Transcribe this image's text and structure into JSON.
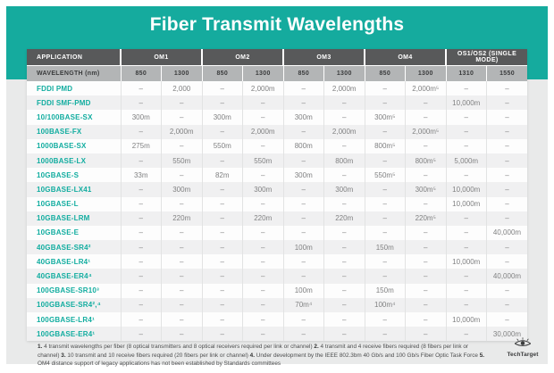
{
  "chart_data": {
    "type": "table",
    "title": "Fiber Transmit Wavelengths",
    "group_headers": [
      "APPLICATION",
      "OM1",
      "OM2",
      "OM3",
      "OM4",
      "OS1/OS2 (SINGLE MODE)"
    ],
    "wavelength_label": "WAVELENGTH (nm)",
    "columns": [
      "850",
      "1300",
      "850",
      "1300",
      "850",
      "1300",
      "850",
      "1300",
      "1310",
      "1550"
    ],
    "rows": [
      [
        "FDDI PMD",
        "–",
        "2,000",
        "–",
        "2,000m",
        "–",
        "2,000m",
        "–",
        "2,000m⁵",
        "–",
        "–"
      ],
      [
        "FDDI SMF-PMD",
        "–",
        "–",
        "–",
        "–",
        "–",
        "–",
        "–",
        "–",
        "10,000m",
        "–"
      ],
      [
        "10/100BASE-SX",
        "300m",
        "–",
        "300m",
        "–",
        "300m",
        "–",
        "300m⁵",
        "–",
        "–",
        "–"
      ],
      [
        "100BASE-FX",
        "–",
        "2,000m",
        "–",
        "2,000m",
        "–",
        "2,000m",
        "–",
        "2,000m⁵",
        "–",
        "–"
      ],
      [
        "1000BASE-SX",
        "275m",
        "–",
        "550m",
        "–",
        "800m",
        "–",
        "800m⁵",
        "–",
        "–",
        "–"
      ],
      [
        "1000BASE-LX",
        "–",
        "550m",
        "–",
        "550m",
        "–",
        "800m",
        "–",
        "800m⁵",
        "5,000m",
        "–"
      ],
      [
        "10GBASE-S",
        "33m",
        "–",
        "82m",
        "–",
        "300m",
        "–",
        "550m⁵",
        "–",
        "–",
        "–"
      ],
      [
        "10GBASE-LX41",
        "–",
        "300m",
        "–",
        "300m",
        "–",
        "300m",
        "–",
        "300m⁵",
        "10,000m",
        "–"
      ],
      [
        "10GBASE-L",
        "–",
        "–",
        "–",
        "–",
        "–",
        "–",
        "–",
        "–",
        "10,000m",
        "–"
      ],
      [
        "10GBASE-LRM",
        "–",
        "220m",
        "–",
        "220m",
        "–",
        "220m",
        "–",
        "220m⁵",
        "–",
        "–"
      ],
      [
        "10GBASE-E",
        "–",
        "–",
        "–",
        "–",
        "–",
        "–",
        "–",
        "–",
        "–",
        "40,000m"
      ],
      [
        "40GBASE-SR4²",
        "–",
        "–",
        "–",
        "–",
        "100m",
        "–",
        "150m",
        "–",
        "–",
        "–"
      ],
      [
        "40GBASE-LR4¹",
        "–",
        "–",
        "–",
        "–",
        "–",
        "–",
        "–",
        "–",
        "10,000m",
        "–"
      ],
      [
        "40GBASE-ER4⁴",
        "–",
        "–",
        "–",
        "–",
        "–",
        "–",
        "–",
        "–",
        "–",
        "40,000m"
      ],
      [
        "100GBASE-SR10³",
        "–",
        "–",
        "–",
        "–",
        "100m",
        "–",
        "150m",
        "–",
        "–",
        "–"
      ],
      [
        "100GBASE-SR4²,⁴",
        "–",
        "–",
        "–",
        "–",
        "70m⁴",
        "–",
        "100m⁴",
        "–",
        "–",
        "–"
      ],
      [
        "100GBASE-LR4¹",
        "–",
        "–",
        "–",
        "–",
        "–",
        "–",
        "–",
        "–",
        "10,000m",
        "–"
      ],
      [
        "100GBASE-ER4¹",
        "–",
        "–",
        "–",
        "–",
        "–",
        "–",
        "–",
        "–",
        "–",
        "30,000m"
      ]
    ]
  },
  "footnotes": [
    {
      "marker": "1.",
      "text": "4 transmit wavelengths per fiber (8 optical transmitters and 8 optical receivers required per link or channel)"
    },
    {
      "marker": "2.",
      "text": "4 transmit and 4 receive fibers required (8 fibers per link or channel)"
    },
    {
      "marker": "3.",
      "text": "10 transmit and 10 receive fibers required (20 fibers per link or channel)"
    },
    {
      "marker": "4.",
      "text": "Under development by the IEEE 802.3bm 40 Gb/s and 100 Gb/s Fiber Optic Task Force"
    },
    {
      "marker": "5.",
      "text": "OM4 distance support of legacy applications has not been established by Standards committees"
    }
  ],
  "logo": {
    "text": "TechTarget"
  },
  "colors": {
    "teal": "#15ab9e",
    "header_dark": "#58595a",
    "header_light": "#b3b5b6",
    "app_text": "#12ada0",
    "stripe": "#f0f0f1",
    "page_bg": "#e9eaea"
  }
}
